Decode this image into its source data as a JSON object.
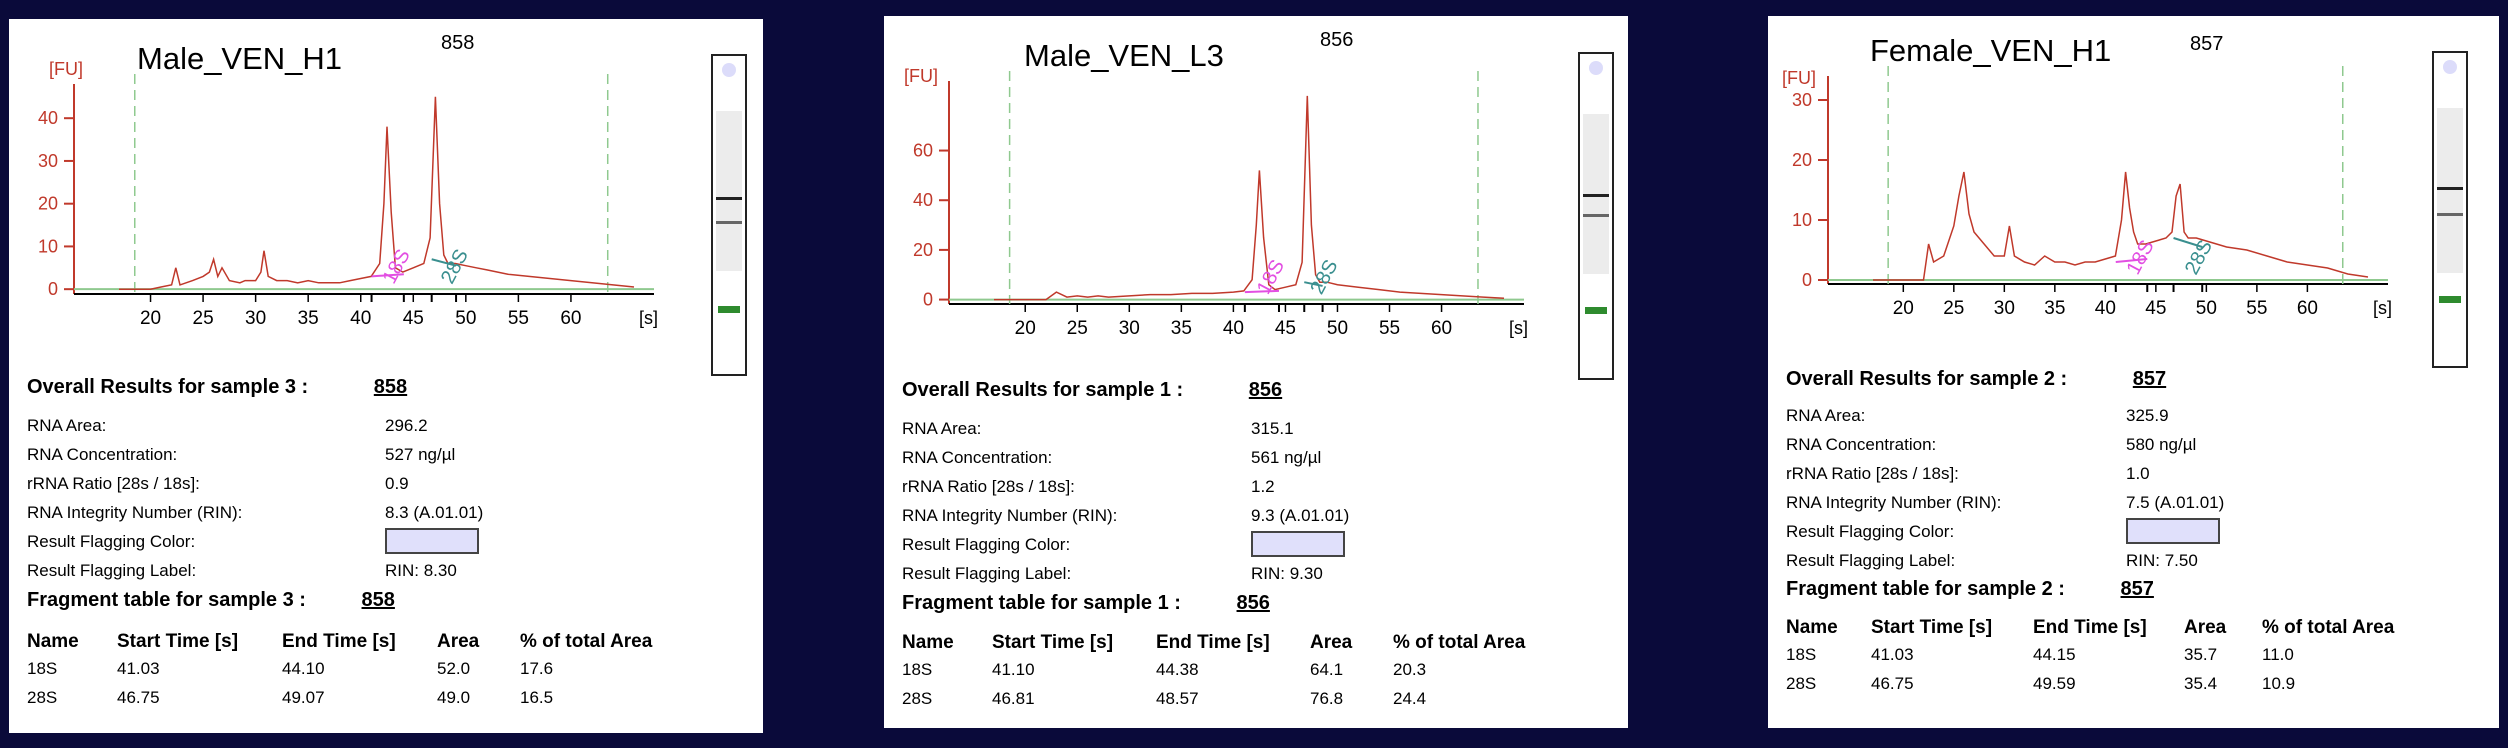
{
  "panels": [
    {
      "title": "Male_VEN_H1",
      "sample_id": "858",
      "results_heading": "Overall Results for sample 3  :",
      "results": [
        {
          "label": "RNA Area:",
          "value": "296.2"
        },
        {
          "label": "RNA Concentration:",
          "value": "527 ng/µl"
        },
        {
          "label": "rRNA Ratio [28s / 18s]:",
          "value": "0.9"
        },
        {
          "label": "RNA Integrity Number (RIN):",
          "value": "8.3    (A.01.01)"
        },
        {
          "label": "Result Flagging Color:",
          "value": ""
        },
        {
          "label": "Result Flagging Label:",
          "value": "RIN: 8.30"
        }
      ],
      "fragment_heading": "Fragment table for sample 3  :",
      "fragment_columns": [
        "Name",
        "Start Time [s]",
        "End Time [s]",
        "Area",
        "% of total Area"
      ],
      "fragments": [
        [
          "18S",
          "41.03",
          "44.10",
          "52.0",
          "17.6"
        ],
        [
          "28S",
          "46.75",
          "49.07",
          "49.0",
          "16.5"
        ]
      ],
      "flag_color": "#e0e0fb"
    },
    {
      "title": "Male_VEN_L3",
      "sample_id": "856",
      "results_heading": "Overall Results for sample 1  :",
      "results": [
        {
          "label": "RNA Area:",
          "value": "315.1"
        },
        {
          "label": "RNA Concentration:",
          "value": "561 ng/µl"
        },
        {
          "label": "rRNA Ratio [28s / 18s]:",
          "value": "1.2"
        },
        {
          "label": "RNA Integrity Number (RIN):",
          "value": "9.3    (A.01.01)"
        },
        {
          "label": "Result Flagging Color:",
          "value": ""
        },
        {
          "label": "Result Flagging Label:",
          "value": "RIN: 9.30"
        }
      ],
      "fragment_heading": "Fragment table for sample 1  :",
      "fragment_columns": [
        "Name",
        "Start Time [s]",
        "End Time [s]",
        "Area",
        "% of total Area"
      ],
      "fragments": [
        [
          "18S",
          "41.10",
          "44.38",
          "64.1",
          "20.3"
        ],
        [
          "28S",
          "46.81",
          "48.57",
          "76.8",
          "24.4"
        ]
      ],
      "flag_color": "#e0e0fb"
    },
    {
      "title": "Female_VEN_H1",
      "sample_id": "857",
      "results_heading": "Overall Results for sample 2  :",
      "results": [
        {
          "label": "RNA Area:",
          "value": "325.9"
        },
        {
          "label": "RNA Concentration:",
          "value": "580 ng/µl"
        },
        {
          "label": "rRNA Ratio [28s / 18s]:",
          "value": "1.0"
        },
        {
          "label": "RNA Integrity Number (RIN):",
          "value": "7.5    (A.01.01)"
        },
        {
          "label": "Result Flagging Color:",
          "value": ""
        },
        {
          "label": "Result Flagging Label:",
          "value": "RIN: 7.50"
        }
      ],
      "fragment_heading": "Fragment table for sample 2  :",
      "fragment_columns": [
        "Name",
        "Start Time [s]",
        "End Time [s]",
        "Area",
        "% of total Area"
      ],
      "fragments": [
        [
          "18S",
          "41.03",
          "44.15",
          "35.7",
          "11.0"
        ],
        [
          "28S",
          "46.75",
          "49.59",
          "35.4",
          "10.9"
        ]
      ],
      "flag_color": "#e0e0fb"
    }
  ],
  "chart_data": [
    {
      "type": "line",
      "title": "Male_VEN_H1",
      "ylabel": "[FU]",
      "xlabel": "[s]",
      "xlim": [
        17,
        66
      ],
      "ylim": [
        -3,
        48
      ],
      "x_ticks": [
        "20",
        "25",
        "30",
        "35",
        "40",
        "45",
        "50",
        "55",
        "60"
      ],
      "y_ticks": [
        "0",
        "10",
        "20",
        "30",
        "40"
      ],
      "peak_labels": [
        "18S",
        "28S"
      ],
      "x": [
        17,
        20,
        21,
        22,
        22.4,
        22.8,
        24,
        25,
        25.6,
        26,
        26.4,
        26.8,
        27.5,
        28.5,
        29,
        30,
        30.5,
        30.8,
        31.2,
        32,
        33,
        34,
        35,
        36,
        37,
        38,
        39,
        40,
        41,
        41.8,
        42.2,
        42.5,
        42.9,
        43.3,
        44,
        45,
        46,
        46.6,
        47.1,
        47.5,
        47.9,
        48.3,
        49,
        50,
        51,
        52,
        54,
        56,
        58,
        60,
        62,
        64,
        66
      ],
      "values": [
        0,
        0,
        0.5,
        1,
        5,
        1,
        2,
        3,
        4,
        7,
        3,
        5,
        2,
        1.5,
        2,
        2,
        4,
        9,
        3,
        2,
        2,
        1.5,
        2,
        1.5,
        1.5,
        1.5,
        2,
        2.5,
        3,
        6,
        20,
        38,
        18,
        5,
        4,
        5,
        6,
        12,
        45,
        20,
        8,
        6,
        6,
        5.5,
        5,
        4.5,
        3.5,
        3,
        2.5,
        2,
        1.5,
        1,
        0.5
      ]
    },
    {
      "type": "line",
      "title": "Male_VEN_L3",
      "ylabel": "[FU]",
      "xlabel": "[s]",
      "xlim": [
        17,
        66
      ],
      "ylim": [
        -5,
        88
      ],
      "x_ticks": [
        "20",
        "25",
        "30",
        "35",
        "40",
        "45",
        "50",
        "55",
        "60"
      ],
      "y_ticks": [
        "0",
        "20",
        "40",
        "60"
      ],
      "peak_labels": [
        "18S",
        "28S"
      ],
      "x": [
        17,
        20,
        22,
        23,
        24,
        25,
        26,
        27,
        28,
        30,
        32,
        34,
        36,
        38,
        40,
        41,
        41.8,
        42.2,
        42.5,
        42.9,
        43.4,
        44,
        45,
        46,
        46.6,
        47.1,
        47.5,
        47.9,
        48.3,
        49,
        50,
        52,
        54,
        56,
        58,
        60,
        62,
        64,
        66
      ],
      "values": [
        0,
        0,
        0,
        3,
        1,
        1.5,
        1,
        1.5,
        1,
        1.5,
        2,
        2,
        2.5,
        2.5,
        3,
        3.5,
        8,
        30,
        52,
        25,
        6,
        4,
        5,
        6,
        15,
        82,
        30,
        10,
        7,
        7,
        6,
        5,
        4,
        3,
        2.5,
        2,
        1.5,
        1,
        0.5
      ]
    },
    {
      "type": "line",
      "title": "Female_VEN_H1",
      "ylabel": "[FU]",
      "xlabel": "[s]",
      "xlim": [
        17,
        66
      ],
      "ylim": [
        -2,
        34
      ],
      "x_ticks": [
        "20",
        "25",
        "30",
        "35",
        "40",
        "45",
        "50",
        "55",
        "60"
      ],
      "y_ticks": [
        "0",
        "10",
        "20",
        "30"
      ],
      "peak_labels": [
        "18S",
        "28S"
      ],
      "x": [
        17,
        20,
        22,
        22.5,
        23,
        24,
        25,
        25.5,
        26,
        26.5,
        27,
        28,
        29,
        30,
        30.5,
        31,
        32,
        33,
        34,
        35,
        36,
        37,
        38,
        39,
        40,
        41,
        41.6,
        42,
        42.4,
        42.8,
        43.2,
        44,
        45,
        46,
        46.6,
        47,
        47.4,
        47.8,
        48.2,
        49,
        50,
        51,
        52,
        54,
        56,
        58,
        60,
        62,
        64,
        66
      ],
      "values": [
        0,
        0,
        0,
        6,
        3,
        4,
        9,
        14,
        18,
        11,
        8,
        6,
        4,
        4,
        9,
        4,
        3,
        2.5,
        4,
        3,
        3,
        2.5,
        3,
        3,
        3.5,
        4,
        10,
        18,
        12,
        8,
        6,
        6,
        6.5,
        7,
        8,
        14,
        16,
        8,
        7,
        7,
        6.5,
        6,
        5.5,
        5,
        4,
        3,
        2.5,
        2,
        1,
        0.5
      ]
    }
  ]
}
